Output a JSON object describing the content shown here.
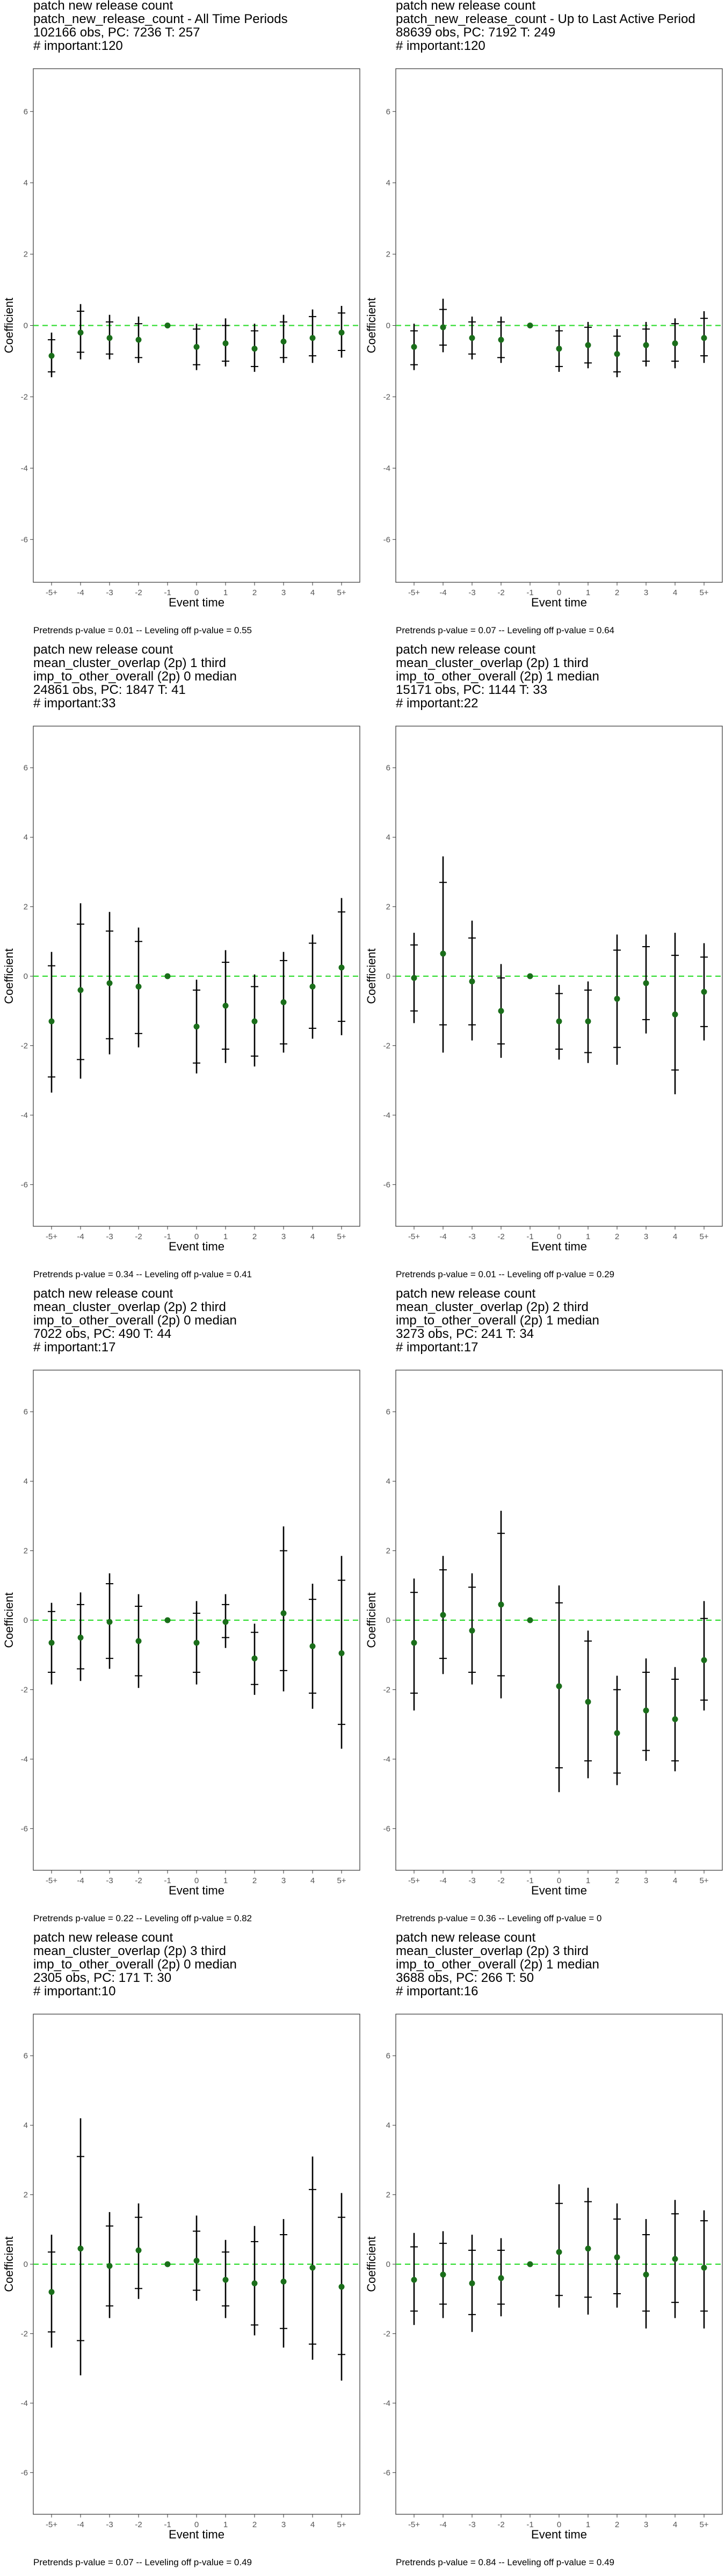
{
  "chart_data": [
    {
      "type": "scatter",
      "title_lines": [
        "patch new release count",
        "patch_new_release_count - All Time Periods",
        "102166 obs, PC: 7236 T: 257",
        "# important:120"
      ],
      "categories": [
        "-5+",
        "-4",
        "-3",
        "-2",
        "-1",
        "0",
        "1",
        "2",
        "3",
        "4",
        "5+"
      ],
      "series": [
        {
          "values": [
            -0.85,
            -0.2,
            -0.35,
            -0.4,
            0.0,
            -0.6,
            -0.5,
            -0.65,
            -0.45,
            -0.35,
            -0.2
          ],
          "outer_lo": [
            -1.45,
            -0.95,
            -0.95,
            -1.05,
            0.0,
            -1.25,
            -1.15,
            -1.3,
            -1.05,
            -1.05,
            -0.9
          ],
          "outer_hi": [
            -0.2,
            0.6,
            0.3,
            0.25,
            0.0,
            0.05,
            0.2,
            0.05,
            0.3,
            0.45,
            0.55
          ],
          "inner_lo": [
            -1.3,
            -0.75,
            -0.8,
            -0.9,
            0.0,
            -1.1,
            -1.0,
            -1.15,
            -0.9,
            -0.85,
            -0.7
          ],
          "inner_hi": [
            -0.4,
            0.4,
            0.1,
            0.05,
            0.0,
            -0.1,
            0.0,
            -0.15,
            0.1,
            0.25,
            0.35
          ]
        }
      ],
      "ylabel": "Coefficient",
      "xlabel": "Event time",
      "ylim": [
        -7.2,
        7.2
      ],
      "yticks": [
        -6,
        -4,
        -2,
        0,
        2,
        4,
        6
      ],
      "grid": false,
      "reference_line": {
        "y": 0,
        "color": "#33dd33",
        "style": "dashed"
      },
      "point_color": "#1a6e1a",
      "caption": "Pretrends p-value = 0.01 -- Leveling off p-value = 0.55"
    },
    {
      "type": "scatter",
      "title_lines": [
        "patch new release count",
        "patch_new_release_count - Up to Last Active Period",
        "88639 obs, PC: 7192 T: 249",
        "# important:120"
      ],
      "categories": [
        "-5+",
        "-4",
        "-3",
        "-2",
        "-1",
        "0",
        "1",
        "2",
        "3",
        "4",
        "5+"
      ],
      "series": [
        {
          "values": [
            -0.6,
            -0.05,
            -0.35,
            -0.4,
            0.0,
            -0.65,
            -0.55,
            -0.8,
            -0.55,
            -0.5,
            -0.35
          ],
          "outer_lo": [
            -1.25,
            -0.75,
            -0.95,
            -1.05,
            0.0,
            -1.3,
            -1.2,
            -1.45,
            -1.15,
            -1.2,
            -1.05
          ],
          "outer_hi": [
            0.05,
            0.75,
            0.25,
            0.25,
            0.0,
            0.0,
            0.1,
            -0.1,
            0.1,
            0.2,
            0.4
          ],
          "inner_lo": [
            -1.1,
            -0.55,
            -0.8,
            -0.9,
            0.0,
            -1.15,
            -1.05,
            -1.3,
            -1.0,
            -1.0,
            -0.85
          ],
          "inner_hi": [
            -0.15,
            0.45,
            0.1,
            0.1,
            0.0,
            -0.15,
            -0.05,
            -0.3,
            -0.1,
            0.05,
            0.2
          ]
        }
      ],
      "ylabel": "Coefficient",
      "xlabel": "Event time",
      "ylim": [
        -7.2,
        7.2
      ],
      "yticks": [
        -6,
        -4,
        -2,
        0,
        2,
        4,
        6
      ],
      "grid": false,
      "reference_line": {
        "y": 0,
        "color": "#33dd33",
        "style": "dashed"
      },
      "point_color": "#1a6e1a",
      "caption": "Pretrends p-value = 0.07 -- Leveling off p-value = 0.64"
    },
    {
      "type": "scatter",
      "title_lines": [
        "patch new release count",
        "mean_cluster_overlap (2p) 1 third",
        "imp_to_other_overall (2p) 0 median",
        "24861 obs, PC: 1847 T: 41",
        "# important:33"
      ],
      "categories": [
        "-5+",
        "-4",
        "-3",
        "-2",
        "-1",
        "0",
        "1",
        "2",
        "3",
        "4",
        "5+"
      ],
      "series": [
        {
          "values": [
            -1.3,
            -0.4,
            -0.2,
            -0.3,
            0.0,
            -1.45,
            -0.85,
            -1.3,
            -0.75,
            -0.3,
            0.25
          ],
          "outer_lo": [
            -3.35,
            -2.95,
            -2.25,
            -2.05,
            0.0,
            -2.8,
            -2.5,
            -2.6,
            -2.2,
            -1.8,
            -1.7
          ],
          "outer_hi": [
            0.7,
            2.1,
            1.85,
            1.4,
            0.0,
            -0.1,
            0.75,
            0.05,
            0.7,
            1.2,
            2.25
          ],
          "inner_lo": [
            -2.9,
            -2.4,
            -1.8,
            -1.65,
            0.0,
            -2.5,
            -2.1,
            -2.3,
            -1.95,
            -1.5,
            -1.3
          ],
          "inner_hi": [
            0.3,
            1.5,
            1.3,
            1.0,
            0.0,
            -0.4,
            0.4,
            -0.3,
            0.45,
            0.95,
            1.85
          ]
        }
      ],
      "ylabel": "Coefficient",
      "xlabel": "Event time",
      "ylim": [
        -7.2,
        7.2
      ],
      "yticks": [
        -6,
        -4,
        -2,
        0,
        2,
        4,
        6
      ],
      "grid": false,
      "reference_line": {
        "y": 0,
        "color": "#33dd33",
        "style": "dashed"
      },
      "point_color": "#1a6e1a",
      "caption": "Pretrends p-value = 0.34 -- Leveling off p-value = 0.41"
    },
    {
      "type": "scatter",
      "title_lines": [
        "patch new release count",
        "mean_cluster_overlap (2p) 1 third",
        "imp_to_other_overall (2p) 1 median",
        "15171 obs, PC: 1144 T: 33",
        "# important:22"
      ],
      "categories": [
        "-5+",
        "-4",
        "-3",
        "-2",
        "-1",
        "0",
        "1",
        "2",
        "3",
        "4",
        "5+"
      ],
      "series": [
        {
          "values": [
            -0.05,
            0.65,
            -0.15,
            -1.0,
            0.0,
            -1.3,
            -1.3,
            -0.65,
            -0.2,
            -1.1,
            -0.45
          ],
          "outer_lo": [
            -1.35,
            -2.2,
            -1.85,
            -2.35,
            0.0,
            -2.4,
            -2.5,
            -2.55,
            -1.65,
            -3.4,
            -1.85
          ],
          "outer_hi": [
            1.25,
            3.45,
            1.6,
            0.35,
            0.0,
            -0.25,
            -0.15,
            1.2,
            1.2,
            1.25,
            0.95
          ],
          "inner_lo": [
            -1.0,
            -1.4,
            -1.4,
            -1.95,
            0.0,
            -2.1,
            -2.2,
            -2.05,
            -1.25,
            -2.7,
            -1.45
          ],
          "inner_hi": [
            0.9,
            2.7,
            1.1,
            -0.05,
            0.0,
            -0.5,
            -0.4,
            0.75,
            0.85,
            0.6,
            0.55
          ]
        }
      ],
      "ylabel": "Coefficient",
      "xlabel": "Event time",
      "ylim": [
        -7.2,
        7.2
      ],
      "yticks": [
        -6,
        -4,
        -2,
        0,
        2,
        4,
        6
      ],
      "grid": false,
      "reference_line": {
        "y": 0,
        "color": "#33dd33",
        "style": "dashed"
      },
      "point_color": "#1a6e1a",
      "caption": "Pretrends p-value = 0.01 -- Leveling off p-value = 0.29"
    },
    {
      "type": "scatter",
      "title_lines": [
        "patch new release count",
        "mean_cluster_overlap (2p) 2 third",
        "imp_to_other_overall (2p) 0 median",
        "7022 obs, PC: 490 T: 44",
        "# important:17"
      ],
      "categories": [
        "-5+",
        "-4",
        "-3",
        "-2",
        "-1",
        "0",
        "1",
        "2",
        "3",
        "4",
        "5+"
      ],
      "series": [
        {
          "values": [
            -0.65,
            -0.5,
            -0.05,
            -0.6,
            0.0,
            -0.65,
            -0.05,
            -1.1,
            0.2,
            -0.75,
            -0.95
          ],
          "outer_lo": [
            -1.85,
            -1.75,
            -1.4,
            -1.95,
            0.0,
            -1.85,
            -0.8,
            -2.15,
            -2.05,
            -2.55,
            -3.7
          ],
          "outer_hi": [
            0.5,
            0.8,
            1.35,
            0.75,
            0.0,
            0.55,
            0.75,
            -0.1,
            2.7,
            1.05,
            1.85
          ],
          "inner_lo": [
            -1.5,
            -1.4,
            -1.1,
            -1.6,
            0.0,
            -1.5,
            -0.5,
            -1.85,
            -1.45,
            -2.1,
            -3.0
          ],
          "inner_hi": [
            0.25,
            0.45,
            1.05,
            0.4,
            0.0,
            0.2,
            0.45,
            -0.35,
            2.0,
            0.6,
            1.15
          ]
        }
      ],
      "ylabel": "Coefficient",
      "xlabel": "Event time",
      "ylim": [
        -7.2,
        7.2
      ],
      "yticks": [
        -6,
        -4,
        -2,
        0,
        2,
        4,
        6
      ],
      "grid": false,
      "reference_line": {
        "y": 0,
        "color": "#33dd33",
        "style": "dashed"
      },
      "point_color": "#1a6e1a",
      "caption": "Pretrends p-value = 0.22 -- Leveling off p-value = 0.82"
    },
    {
      "type": "scatter",
      "title_lines": [
        "patch new release count",
        "mean_cluster_overlap (2p) 2 third",
        "imp_to_other_overall (2p) 1 median",
        "3273 obs, PC: 241 T: 34",
        "# important:17"
      ],
      "categories": [
        "-5+",
        "-4",
        "-3",
        "-2",
        "-1",
        "0",
        "1",
        "2",
        "3",
        "4",
        "5+"
      ],
      "series": [
        {
          "values": [
            -0.65,
            0.15,
            -0.3,
            0.45,
            0.0,
            -1.9,
            -2.35,
            -3.25,
            -2.6,
            -2.85,
            -1.15
          ],
          "outer_lo": [
            -2.6,
            -1.55,
            -1.85,
            -2.25,
            0.0,
            -4.95,
            -4.55,
            -4.75,
            -4.05,
            -4.35,
            -2.6
          ],
          "outer_hi": [
            1.2,
            1.85,
            1.35,
            3.15,
            0.0,
            1.0,
            -0.3,
            -1.6,
            -1.1,
            -1.35,
            0.55
          ],
          "inner_lo": [
            -2.1,
            -1.1,
            -1.5,
            -1.6,
            0.0,
            -4.25,
            -4.05,
            -4.4,
            -3.75,
            -4.05,
            -2.3
          ],
          "inner_hi": [
            0.8,
            1.45,
            0.95,
            2.5,
            0.0,
            0.5,
            -0.6,
            -2.0,
            -1.5,
            -1.7,
            0.05
          ]
        }
      ],
      "ylabel": "Coefficient",
      "xlabel": "Event time",
      "ylim": [
        -7.2,
        7.2
      ],
      "yticks": [
        -6,
        -4,
        -2,
        0,
        2,
        4,
        6
      ],
      "grid": false,
      "reference_line": {
        "y": 0,
        "color": "#33dd33",
        "style": "dashed"
      },
      "point_color": "#1a6e1a",
      "caption": "Pretrends p-value = 0.36 -- Leveling off p-value = 0"
    },
    {
      "type": "scatter",
      "title_lines": [
        "patch new release count",
        "mean_cluster_overlap (2p) 3 third",
        "imp_to_other_overall (2p) 0 median",
        "2305 obs, PC: 171 T: 30",
        "# important:10"
      ],
      "categories": [
        "-5+",
        "-4",
        "-3",
        "-2",
        "-1",
        "0",
        "1",
        "2",
        "3",
        "4",
        "5+"
      ],
      "series": [
        {
          "values": [
            -0.8,
            0.45,
            -0.05,
            0.4,
            0.0,
            0.1,
            -0.45,
            -0.55,
            -0.5,
            -0.1,
            -0.65
          ],
          "outer_lo": [
            -2.4,
            -3.2,
            -1.55,
            -1.0,
            0.0,
            -1.05,
            -1.55,
            -2.05,
            -2.4,
            -2.75,
            -3.35
          ],
          "outer_hi": [
            0.85,
            4.2,
            1.5,
            1.75,
            0.0,
            1.4,
            0.7,
            1.1,
            1.3,
            3.1,
            2.05
          ],
          "inner_lo": [
            -1.95,
            -2.2,
            -1.2,
            -0.7,
            0.0,
            -0.75,
            -1.2,
            -1.75,
            -1.85,
            -2.3,
            -2.6
          ],
          "inner_hi": [
            0.35,
            3.1,
            1.1,
            1.35,
            0.0,
            0.95,
            0.35,
            0.65,
            0.85,
            2.15,
            1.35
          ]
        }
      ],
      "ylabel": "Coefficient",
      "xlabel": "Event time",
      "ylim": [
        -7.2,
        7.2
      ],
      "yticks": [
        -6,
        -4,
        -2,
        0,
        2,
        4,
        6
      ],
      "grid": false,
      "reference_line": {
        "y": 0,
        "color": "#33dd33",
        "style": "dashed"
      },
      "point_color": "#1a6e1a",
      "caption": "Pretrends p-value = 0.07 -- Leveling off p-value = 0.49"
    },
    {
      "type": "scatter",
      "title_lines": [
        "patch new release count",
        "mean_cluster_overlap (2p) 3 third",
        "imp_to_other_overall (2p) 1 median",
        "3688 obs, PC: 266 T: 50",
        "# important:16"
      ],
      "categories": [
        "-5+",
        "-4",
        "-3",
        "-2",
        "-1",
        "0",
        "1",
        "2",
        "3",
        "4",
        "5+"
      ],
      "series": [
        {
          "values": [
            -0.45,
            -0.3,
            -0.55,
            -0.4,
            0.0,
            0.35,
            0.45,
            0.2,
            -0.3,
            0.15,
            -0.1
          ],
          "outer_lo": [
            -1.75,
            -1.55,
            -1.95,
            -1.5,
            0.0,
            -1.25,
            -1.45,
            -1.25,
            -1.85,
            -1.55,
            -1.85
          ],
          "outer_hi": [
            0.9,
            0.95,
            0.85,
            0.75,
            0.0,
            2.3,
            2.2,
            1.75,
            1.3,
            1.85,
            1.55
          ],
          "inner_lo": [
            -1.35,
            -1.15,
            -1.45,
            -1.15,
            0.0,
            -0.9,
            -0.95,
            -0.85,
            -1.35,
            -1.1,
            -1.35
          ],
          "inner_hi": [
            0.5,
            0.6,
            0.4,
            0.4,
            0.0,
            1.75,
            1.8,
            1.3,
            0.85,
            1.45,
            1.25
          ]
        }
      ],
      "ylabel": "Coefficient",
      "xlabel": "Event time",
      "ylim": [
        -7.2,
        7.2
      ],
      "yticks": [
        -6,
        -4,
        -2,
        0,
        2,
        4,
        6
      ],
      "grid": false,
      "reference_line": {
        "y": 0,
        "color": "#33dd33",
        "style": "dashed"
      },
      "point_color": "#1a6e1a",
      "caption": "Pretrends p-value = 0.84 -- Leveling off p-value = 0.49"
    }
  ]
}
